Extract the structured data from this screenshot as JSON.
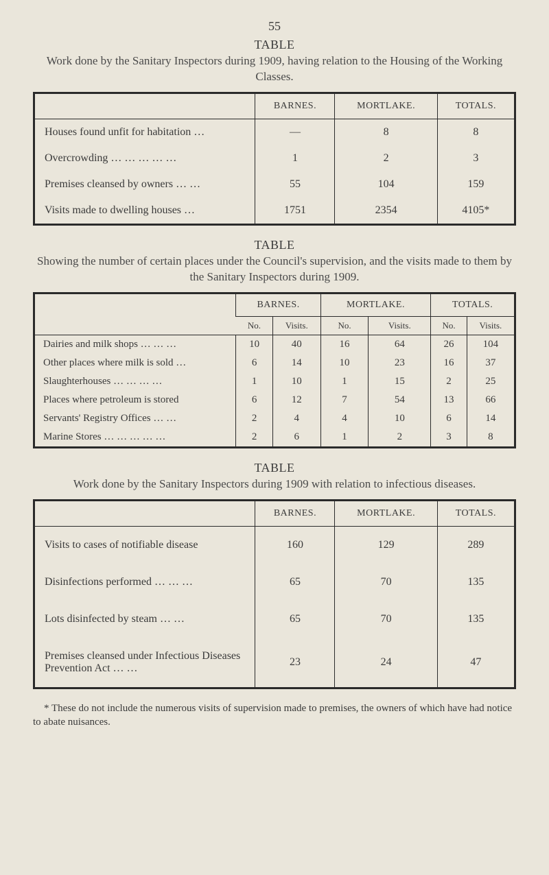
{
  "page": {
    "number": "55",
    "background_color": "#eae6db",
    "text_color": "#3a3a3a",
    "border_color": "#2a2a2a"
  },
  "section1": {
    "title": "TABLE",
    "subtitle": "Work done by the Sanitary Inspectors during 1909, having relation to the Housing of the Working Classes.",
    "headers": {
      "c1": "BARNES.",
      "c2": "MORTLAKE.",
      "c3": "TOTALS."
    },
    "rows": [
      {
        "label": "Houses found unfit for habitation …",
        "barnes": "—",
        "mortlake": "8",
        "totals": "8"
      },
      {
        "label": "Overcrowding … … … … …",
        "barnes": "1",
        "mortlake": "2",
        "totals": "3"
      },
      {
        "label": "Premises cleansed by owners … …",
        "barnes": "55",
        "mortlake": "104",
        "totals": "159"
      },
      {
        "label": "Visits made to dwelling houses …",
        "barnes": "1751",
        "mortlake": "2354",
        "totals": "4105*"
      }
    ]
  },
  "section2": {
    "title": "TABLE",
    "subtitle": "Showing the number of certain places under the Council's supervision, and the visits made to them by the Sanitary Inspectors during 1909.",
    "group_headers": {
      "g1": "BARNES.",
      "g2": "MORTLAKE.",
      "g3": "TOTALS."
    },
    "sub_headers": {
      "no": "No.",
      "visits": "Visits."
    },
    "rows": [
      {
        "label": "Dairies and milk shops … … …",
        "b_no": "10",
        "b_v": "40",
        "m_no": "16",
        "m_v": "64",
        "t_no": "26",
        "t_v": "104"
      },
      {
        "label": "Other places where milk is sold …",
        "b_no": "6",
        "b_v": "14",
        "m_no": "10",
        "m_v": "23",
        "t_no": "16",
        "t_v": "37"
      },
      {
        "label": "Slaughterhouses … … … …",
        "b_no": "1",
        "b_v": "10",
        "m_no": "1",
        "m_v": "15",
        "t_no": "2",
        "t_v": "25"
      },
      {
        "label": "Places where petroleum is stored",
        "b_no": "6",
        "b_v": "12",
        "m_no": "7",
        "m_v": "54",
        "t_no": "13",
        "t_v": "66"
      },
      {
        "label": "Servants' Registry Offices … …",
        "b_no": "2",
        "b_v": "4",
        "m_no": "4",
        "m_v": "10",
        "t_no": "6",
        "t_v": "14"
      },
      {
        "label": "Marine Stores … … … … …",
        "b_no": "2",
        "b_v": "6",
        "m_no": "1",
        "m_v": "2",
        "t_no": "3",
        "t_v": "8"
      }
    ]
  },
  "section3": {
    "title": "TABLE",
    "subtitle": "Work done by the Sanitary Inspectors during 1909 with relation to infectious diseases.",
    "headers": {
      "c1": "BARNES.",
      "c2": "MORTLAKE.",
      "c3": "TOTALS."
    },
    "rows": [
      {
        "label": "Visits to cases of notifiable disease",
        "barnes": "160",
        "mortlake": "129",
        "totals": "289"
      },
      {
        "label": "Disinfections performed … … …",
        "barnes": "65",
        "mortlake": "70",
        "totals": "135"
      },
      {
        "label": "Lots disinfected by steam … …",
        "barnes": "65",
        "mortlake": "70",
        "totals": "135"
      },
      {
        "label": "Premises cleansed under Infectious Diseases Prevention Act … …",
        "barnes": "23",
        "mortlake": "24",
        "totals": "47"
      }
    ]
  },
  "footnote": "* These do not include the numerous visits of supervision made to premises, the owners of which have had notice to abate nuisances."
}
